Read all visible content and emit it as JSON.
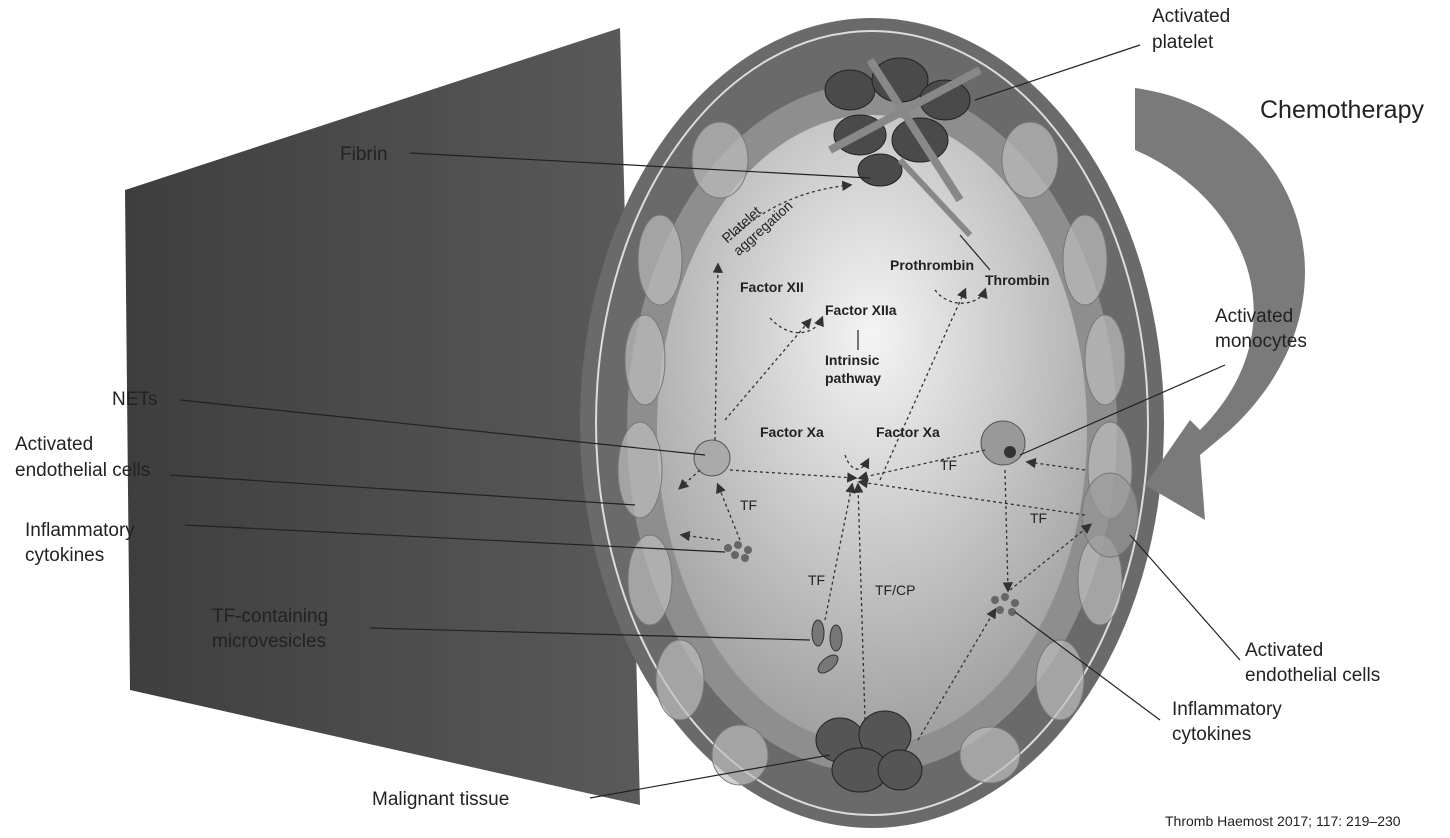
{
  "labels": {
    "activated_platelet": [
      "Activated",
      "platelet"
    ],
    "chemotherapy": "Chemotherapy",
    "fibrin": "Fibrin",
    "platelet_aggregation": [
      "Platelet",
      "aggregation"
    ],
    "prothrombin": "Prothrombin",
    "thrombin": "Thrombin",
    "factor_xii": "Factor XII",
    "factor_xiia": "Factor XIIa",
    "intrinsic_pathway": [
      "Intrinsic",
      "pathway"
    ],
    "activated_monocytes": [
      "Activated",
      "monocytes"
    ],
    "nets": "NETs",
    "activated_endothelial_left": [
      "Activated",
      "endothelial cells"
    ],
    "factor_xa_left": "Factor Xa",
    "factor_xa_right": "Factor Xa",
    "tf_monocyte": "TF",
    "tf_left": "TF",
    "tf_right": "TF",
    "inflammatory_cytokines_left": [
      "Inflammatory",
      "cytokines"
    ],
    "tf_microvesicle": "TF",
    "tf_cp": "TF/CP",
    "tf_microvesicles": [
      "TF-containing",
      "microvesicles"
    ],
    "activated_endothelial_right": [
      "Activated",
      "endothelial cells"
    ],
    "inflammatory_cytokines_right": [
      "Inflammatory",
      "cytokines"
    ],
    "malignant_tissue": "Malignant tissue"
  },
  "citation": "Thromb Haemost 2017; 117: 219–230"
}
